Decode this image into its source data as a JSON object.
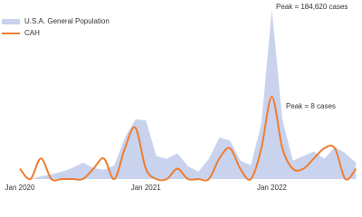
{
  "chart_data": {
    "type": "area-line",
    "categories": [
      "Jan 2020",
      null,
      null,
      null,
      null,
      null,
      null,
      null,
      null,
      null,
      null,
      null,
      "Jan 2021",
      null,
      null,
      null,
      null,
      null,
      null,
      null,
      null,
      null,
      null,
      null,
      "Jan 2022",
      null,
      null,
      null,
      null,
      null,
      null,
      null,
      null
    ],
    "series": [
      {
        "name": "U.S.A. General Population",
        "color": "#c9d3ee",
        "axis": "y",
        "values": [
          0,
          0,
          3000,
          5000,
          8000,
          12000,
          18000,
          12000,
          10000,
          15000,
          45000,
          65000,
          64000,
          25000,
          22000,
          28000,
          14000,
          8000,
          22000,
          45000,
          42000,
          20000,
          15000,
          60000,
          184620,
          65000,
          20000,
          25000,
          30000,
          22000,
          35000,
          28000,
          18000
        ]
      },
      {
        "name": "CAH",
        "color": "#ed7d31",
        "axis": "y2",
        "values": [
          1,
          0,
          2,
          0,
          0,
          0,
          0,
          1,
          2,
          0,
          3,
          5,
          1,
          0,
          0,
          1,
          0,
          0,
          0,
          2,
          3,
          1,
          0,
          3,
          8,
          3,
          1,
          1,
          2,
          3,
          3,
          0,
          1
        ]
      }
    ],
    "ylim": [
      0,
      190000
    ],
    "y2lim": [
      0,
      17
    ],
    "annotations": [
      {
        "text": "Peak = 184,620 cases",
        "series": 0,
        "index": 24
      },
      {
        "text": "Peak = 8 cases",
        "series": 1,
        "index": 24
      }
    ]
  }
}
